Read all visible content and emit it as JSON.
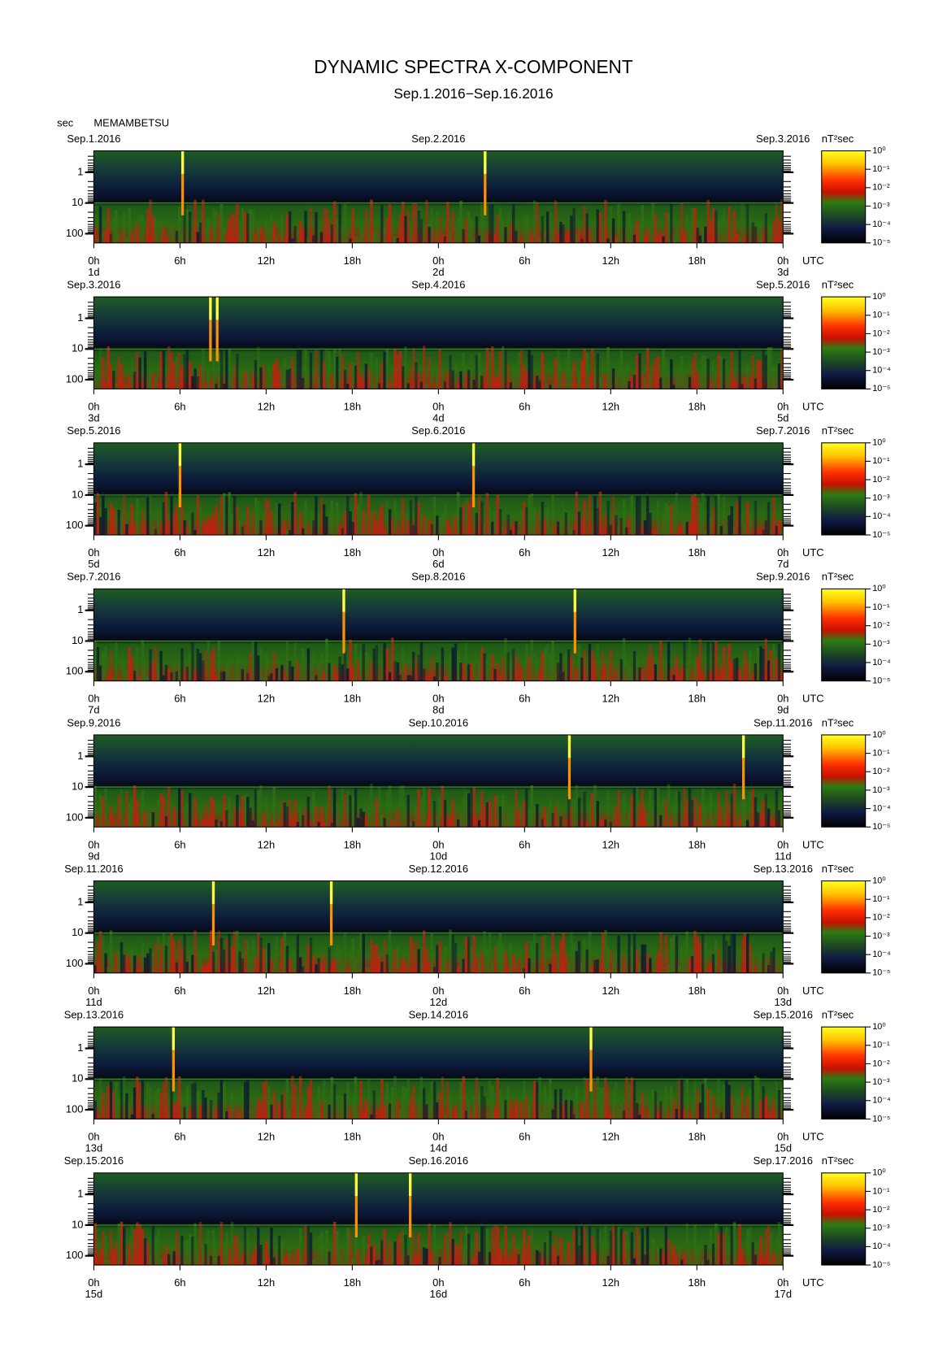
{
  "chart_data": {
    "type": "heatmap",
    "title": "DYNAMIC SPECTRA X-COMPONENT",
    "subtitle": "Sep.1.2016−Sep.16.2016",
    "y_label": "sec",
    "station": "MEMAMBETSU",
    "x_unit": "UTC",
    "colorbar_unit": "nT²sec",
    "xlim": [
      0,
      48
    ],
    "xticks": [
      {
        "value": 0,
        "label": "0h"
      },
      {
        "value": 6,
        "label": "6h"
      },
      {
        "value": 12,
        "label": "12h"
      },
      {
        "value": 18,
        "label": "18h"
      },
      {
        "value": 24,
        "label": "0h"
      },
      {
        "value": 30,
        "label": "6h"
      },
      {
        "value": 36,
        "label": "12h"
      },
      {
        "value": 42,
        "label": "18h"
      },
      {
        "value": 48,
        "label": "0h"
      }
    ],
    "ylim": [
      0.2,
      200
    ],
    "yticks": [
      1,
      10,
      100
    ],
    "log_y": true,
    "clim": [
      1e-05,
      1
    ],
    "cticks": [
      {
        "value": 1,
        "label": "10⁰"
      },
      {
        "value": 0.1,
        "label": "10⁻¹"
      },
      {
        "value": 0.01,
        "label": "10⁻²"
      },
      {
        "value": 0.001,
        "label": "10⁻³"
      },
      {
        "value": 0.0001,
        "label": "10⁻⁴"
      },
      {
        "value": 1e-05,
        "label": "10⁻⁵"
      }
    ],
    "panels": [
      {
        "dates": [
          "Sep.1.2016",
          "Sep.2.2016",
          "Sep.3.2016"
        ],
        "days": [
          "1d",
          "2d",
          "3d"
        ]
      },
      {
        "dates": [
          "Sep.3.2016",
          "Sep.4.2016",
          "Sep.5.2016"
        ],
        "days": [
          "3d",
          "4d",
          "5d"
        ]
      },
      {
        "dates": [
          "Sep.5.2016",
          "Sep.6.2016",
          "Sep.7.2016"
        ],
        "days": [
          "5d",
          "6d",
          "7d"
        ]
      },
      {
        "dates": [
          "Sep.7.2016",
          "Sep.8.2016",
          "Sep.9.2016"
        ],
        "days": [
          "7d",
          "8d",
          "9d"
        ]
      },
      {
        "dates": [
          "Sep.9.2016",
          "Sep.10.2016",
          "Sep.11.2016"
        ],
        "days": [
          "9d",
          "10d",
          "11d"
        ]
      },
      {
        "dates": [
          "Sep.11.2016",
          "Sep.12.2016",
          "Sep.13.2016"
        ],
        "days": [
          "11d",
          "12d",
          "13d"
        ]
      },
      {
        "dates": [
          "Sep.13.2016",
          "Sep.14.2016",
          "Sep.15.2016"
        ],
        "days": [
          "13d",
          "14d",
          "15d"
        ]
      },
      {
        "dates": [
          "Sep.15.2016",
          "Sep.16.2016",
          "Sep.17.2016"
        ],
        "days": [
          "15d",
          "16d",
          "17d"
        ]
      }
    ]
  }
}
